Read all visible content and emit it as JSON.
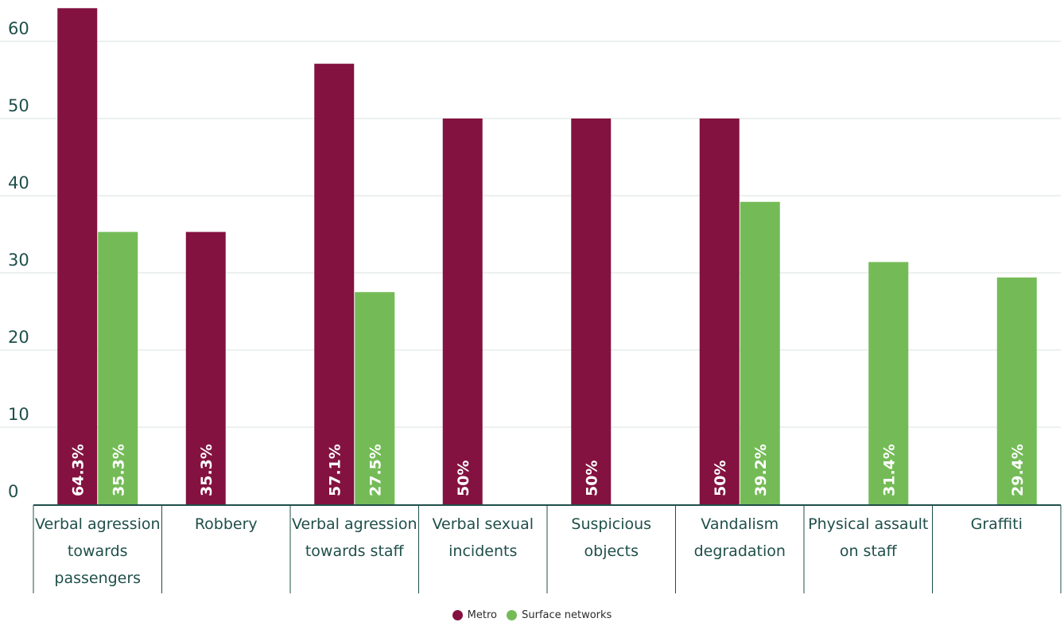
{
  "chart_data": {
    "type": "bar",
    "categories": [
      [
        "Verbal agression",
        "towards",
        "passengers"
      ],
      [
        "Robbery"
      ],
      [
        "Verbal agression",
        "towards staff"
      ],
      [
        "Verbal sexual",
        "incidents"
      ],
      [
        "Suspicious",
        "objects"
      ],
      [
        "Vandalism",
        "degradation"
      ],
      [
        "Physical assault",
        "on staff"
      ],
      [
        "Graffiti"
      ]
    ],
    "series": [
      {
        "name": "Metro",
        "color": "#831240",
        "values": [
          64.3,
          35.3,
          57.1,
          50,
          50,
          50,
          null,
          null
        ],
        "labels": [
          "64.3%",
          "35.3%",
          "57.1%",
          "50%",
          "50%",
          "50%",
          "",
          ""
        ]
      },
      {
        "name": "Surface networks",
        "color": "#74bb57",
        "values": [
          35.3,
          null,
          27.5,
          null,
          null,
          39.2,
          31.4,
          29.4
        ],
        "labels": [
          "35.3%",
          "",
          "27.5%",
          "",
          "",
          "39.2%",
          "31.4%",
          "29.4%"
        ]
      }
    ],
    "yticks": [
      "0",
      "10",
      "20",
      "30",
      "40",
      "50",
      "60"
    ],
    "ylim": [
      0,
      60
    ],
    "grid": true,
    "legend_position": "bottom-center"
  }
}
